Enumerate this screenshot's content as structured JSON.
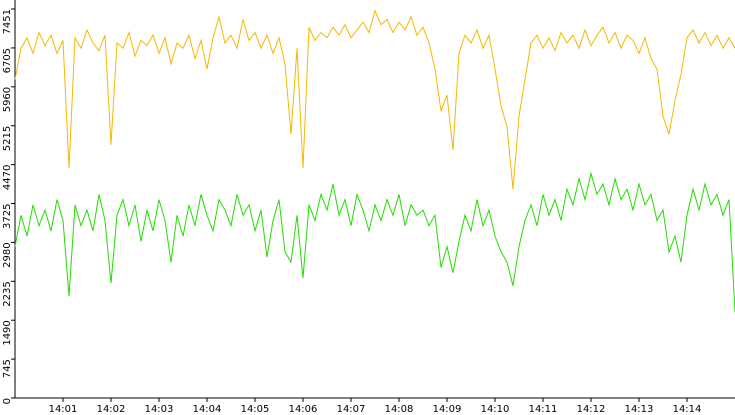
{
  "chart_data": {
    "type": "line",
    "x": [
      0,
      0.125,
      0.25,
      0.375,
      0.5,
      0.625,
      0.75,
      0.875,
      1,
      1.125,
      1.25,
      1.375,
      1.5,
      1.625,
      1.75,
      1.875,
      2,
      2.125,
      2.25,
      2.375,
      2.5,
      2.625,
      2.75,
      2.875,
      3,
      3.125,
      3.25,
      3.375,
      3.5,
      3.625,
      3.75,
      3.875,
      4,
      4.125,
      4.25,
      4.375,
      4.5,
      4.625,
      4.75,
      4.875,
      5,
      5.125,
      5.25,
      5.375,
      5.5,
      5.625,
      5.75,
      5.875,
      6,
      6.125,
      6.25,
      6.375,
      6.5,
      6.625,
      6.75,
      6.875,
      7,
      7.125,
      7.25,
      7.375,
      7.5,
      7.625,
      7.75,
      7.875,
      8,
      8.125,
      8.25,
      8.375,
      8.5,
      8.625,
      8.75,
      8.875,
      9,
      9.125,
      9.25,
      9.375,
      9.5,
      9.625,
      9.75,
      9.875,
      10,
      10.125,
      10.25,
      10.375,
      10.5,
      10.625,
      10.75,
      10.875,
      11,
      11.125,
      11.25,
      11.375,
      11.5,
      11.625,
      11.75,
      11.875,
      12,
      12.125,
      12.25,
      12.375,
      12.5,
      12.625,
      12.75,
      12.875,
      13,
      13.125,
      13.25,
      13.375,
      13.5,
      13.625,
      13.75,
      13.875,
      14,
      14.125,
      14.25,
      14.375,
      14.5,
      14.625,
      14.75,
      14.875,
      15
    ],
    "series": [
      {
        "color": "#f5b800",
        "values": [
          6100,
          6700,
          6900,
          6600,
          7000,
          6750,
          6950,
          6600,
          6850,
          4400,
          6900,
          6700,
          7050,
          6800,
          6650,
          6950,
          4850,
          6800,
          6700,
          7000,
          6550,
          6850,
          6750,
          6950,
          6600,
          6900,
          6400,
          6800,
          6700,
          6950,
          6500,
          6850,
          6300,
          6900,
          7300,
          6800,
          6950,
          6700,
          7250,
          6850,
          7000,
          6700,
          6950,
          6600,
          6900,
          6400,
          5050,
          6700,
          4400,
          7100,
          6850,
          7000,
          6900,
          7100,
          6950,
          7150,
          6900,
          7050,
          7200,
          7000,
          7420,
          7150,
          7250,
          7000,
          7200,
          7050,
          7300,
          6950,
          7100,
          6800,
          6300,
          5500,
          5800,
          4750,
          6600,
          6950,
          6800,
          7050,
          6700,
          6950,
          6300,
          5600,
          5200,
          4000,
          5400,
          6100,
          6800,
          6950,
          6700,
          6900,
          6650,
          7000,
          6800,
          6950,
          6700,
          7050,
          6750,
          6950,
          7100,
          6800,
          7000,
          6700,
          6950,
          6850,
          6600,
          6900,
          6500,
          6300,
          5400,
          5050,
          5700,
          6200,
          6900,
          7050,
          6800,
          7000,
          6750,
          6950,
          6700,
          6900,
          6700
        ]
      },
      {
        "color": "#22dd00",
        "values": [
          2900,
          3500,
          3100,
          3700,
          3300,
          3600,
          3200,
          3800,
          3400,
          1950,
          3700,
          3300,
          3600,
          3200,
          3900,
          3400,
          2200,
          3500,
          3800,
          3300,
          3700,
          3000,
          3600,
          3200,
          3800,
          3400,
          2600,
          3500,
          3100,
          3700,
          3300,
          3900,
          3500,
          3200,
          3800,
          3600,
          3300,
          3900,
          3500,
          3700,
          3200,
          3600,
          2700,
          3400,
          3800,
          2800,
          2600,
          3500,
          2300,
          3700,
          3400,
          3900,
          3600,
          4100,
          3500,
          3800,
          3300,
          3900,
          3600,
          3200,
          3700,
          3400,
          3800,
          3500,
          3900,
          3300,
          3700,
          3500,
          3600,
          3300,
          3500,
          2500,
          2900,
          2400,
          3000,
          3500,
          3200,
          3800,
          3300,
          3600,
          3100,
          2800,
          2600,
          2150,
          2900,
          3400,
          3700,
          3300,
          3900,
          3500,
          3800,
          3400,
          4000,
          3700,
          4200,
          3800,
          4300,
          3900,
          4100,
          3700,
          4200,
          3800,
          4000,
          3600,
          4100,
          3700,
          3900,
          3400,
          3600,
          2800,
          3100,
          2600,
          3500,
          4000,
          3600,
          4100,
          3700,
          3900,
          3500,
          3800,
          1650
        ]
      }
    ],
    "xlim": [
      0,
      15
    ],
    "xticks": [
      {
        "value": 1,
        "label": "14:01"
      },
      {
        "value": 2,
        "label": "14:02"
      },
      {
        "value": 3,
        "label": "14:03"
      },
      {
        "value": 4,
        "label": "14:04"
      },
      {
        "value": 5,
        "label": "14:05"
      },
      {
        "value": 6,
        "label": "14:06"
      },
      {
        "value": 7,
        "label": "14:07"
      },
      {
        "value": 8,
        "label": "14:08"
      },
      {
        "value": 9,
        "label": "14:09"
      },
      {
        "value": 10,
        "label": "14:10"
      },
      {
        "value": 11,
        "label": "14:11"
      },
      {
        "value": 12,
        "label": "14:12"
      },
      {
        "value": 13,
        "label": "14:13"
      },
      {
        "value": 14,
        "label": "14:14"
      }
    ],
    "ylim": [
      0,
      7451
    ],
    "yticks": [
      0,
      745,
      1490,
      2235,
      2980,
      3725,
      4470,
      5215,
      5960,
      6705,
      7451
    ]
  }
}
